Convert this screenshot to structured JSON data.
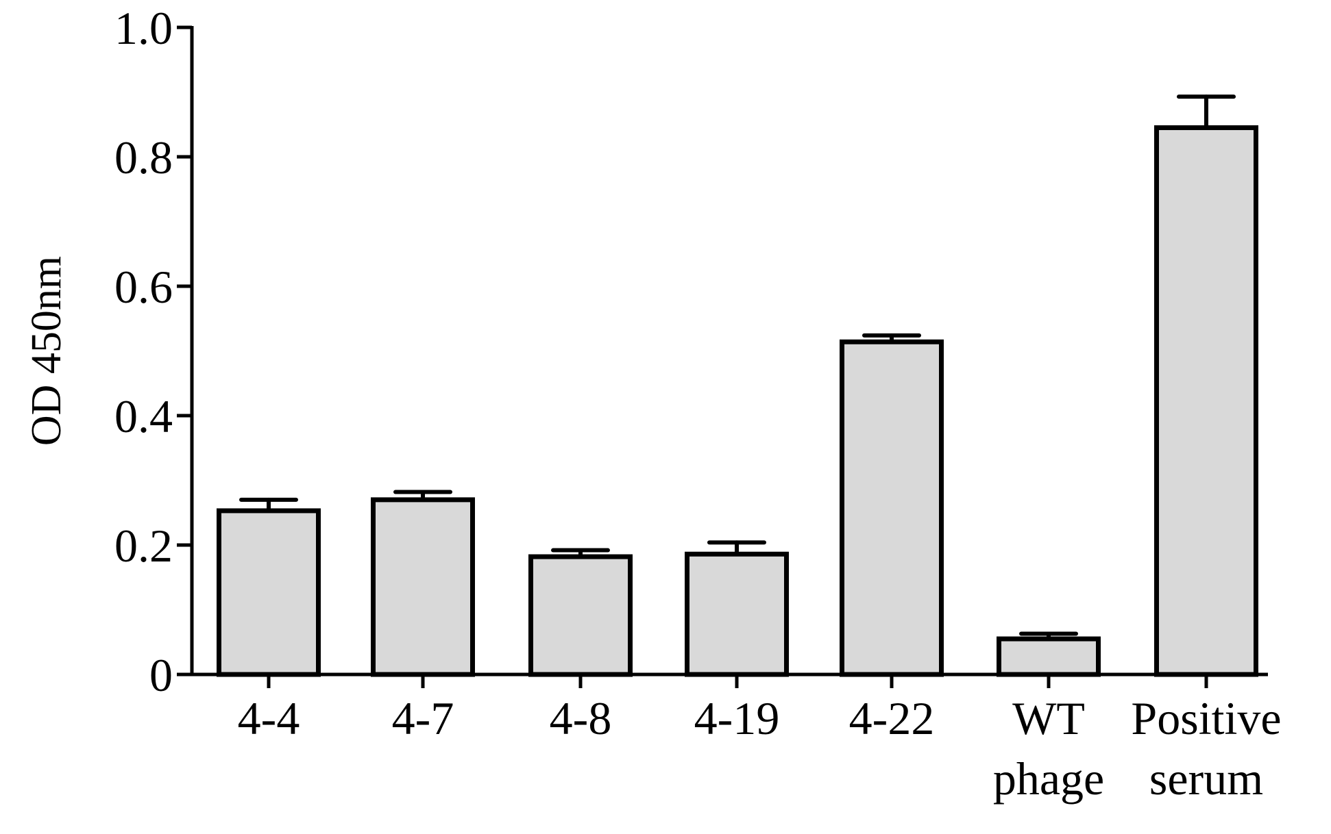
{
  "chart_data": {
    "type": "bar",
    "title": "",
    "xlabel": "",
    "ylabel": "OD 450nm",
    "ylim": [
      0,
      1.0
    ],
    "yticks": [
      {
        "value": 0,
        "label": "0"
      },
      {
        "value": 0.2,
        "label": "0.2"
      },
      {
        "value": 0.4,
        "label": "0.4"
      },
      {
        "value": 0.6,
        "label": "0.6"
      },
      {
        "value": 0.8,
        "label": "0.8"
      },
      {
        "value": 1.0,
        "label": "1.0"
      }
    ],
    "categories": [
      {
        "lines": [
          "4-4"
        ]
      },
      {
        "lines": [
          "4-7"
        ]
      },
      {
        "lines": [
          "4-8"
        ]
      },
      {
        "lines": [
          "4-19"
        ]
      },
      {
        "lines": [
          "4-22"
        ]
      },
      {
        "lines": [
          "WT",
          "phage"
        ]
      },
      {
        "lines": [
          "Positive",
          "serum"
        ]
      }
    ],
    "values": [
      0.253,
      0.27,
      0.182,
      0.186,
      0.514,
      0.055,
      0.845
    ],
    "errors": [
      0.017,
      0.012,
      0.01,
      0.018,
      0.01,
      0.008,
      0.048
    ],
    "bar_fill": "#d9d9d9",
    "bar_stroke": "#000000",
    "grid": false,
    "legend": "none"
  }
}
